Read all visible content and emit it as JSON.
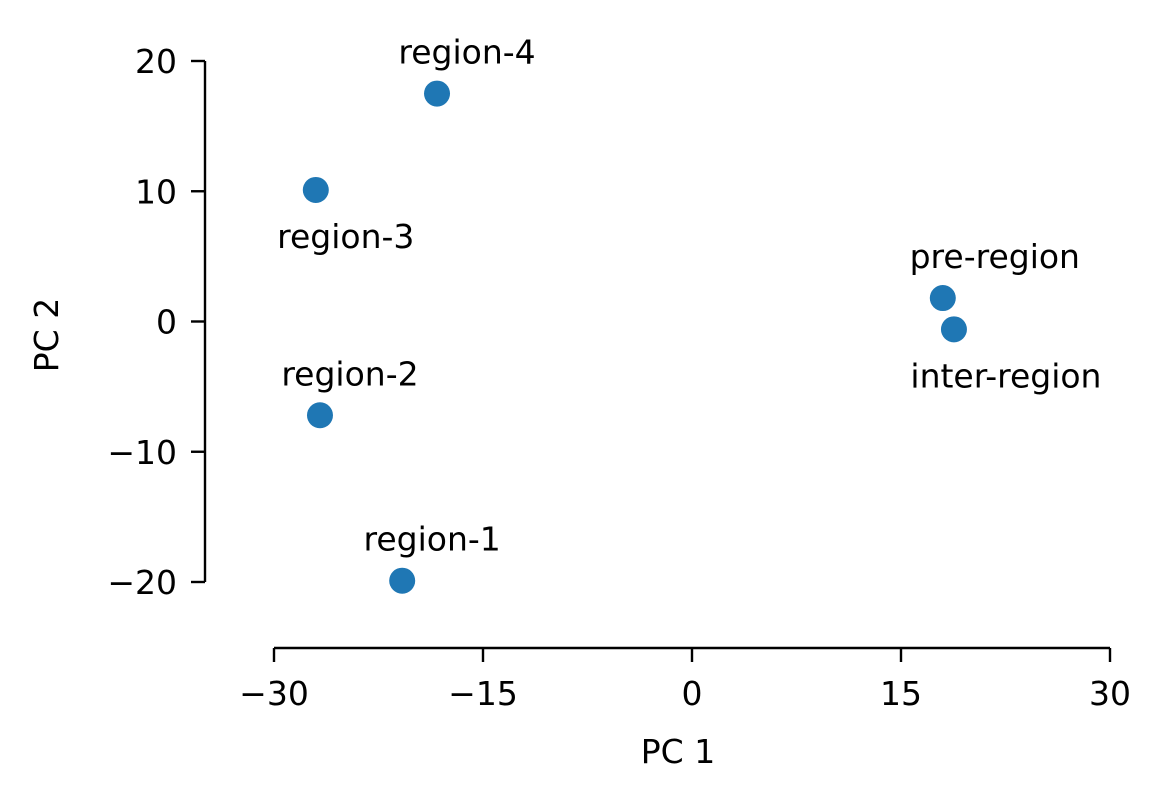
{
  "chart_data": {
    "type": "scatter",
    "title": "",
    "xlabel": "PC 1",
    "ylabel": "PC 2",
    "xlim": [
      -30,
      30
    ],
    "ylim": [
      -20,
      20
    ],
    "xticks": [
      -30,
      -15,
      0,
      15,
      30
    ],
    "yticks": [
      -20,
      -10,
      0,
      10,
      20
    ],
    "xtick_labels": [
      "−30",
      "−15",
      "0",
      "15",
      "30"
    ],
    "ytick_labels": [
      "−20",
      "−10",
      "0",
      "10",
      "20"
    ],
    "grid": false,
    "marker_color": "#1f77b4",
    "points": [
      {
        "label": "region-1",
        "x": -20.8,
        "y": -19.9,
        "label_position": "above"
      },
      {
        "label": "region-2",
        "x": -26.7,
        "y": -7.2,
        "label_position": "above"
      },
      {
        "label": "region-3",
        "x": -27.0,
        "y": 10.1,
        "label_position": "below"
      },
      {
        "label": "region-4",
        "x": -18.3,
        "y": 17.5,
        "label_position": "above"
      },
      {
        "label": "pre-region",
        "x": 18.0,
        "y": 1.8,
        "label_position": "above"
      },
      {
        "label": "inter-region",
        "x": 18.8,
        "y": -0.6,
        "label_position": "below"
      }
    ]
  }
}
